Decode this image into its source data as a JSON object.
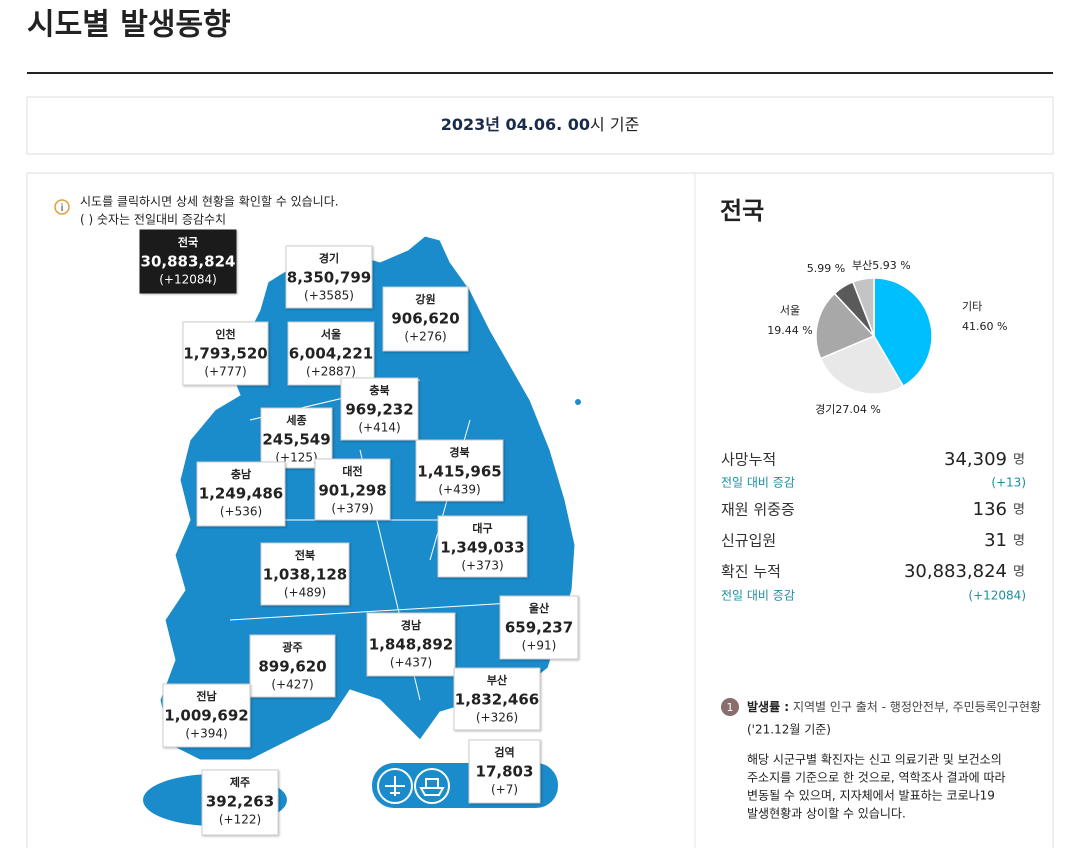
{
  "header": {
    "title": "시도별 발생동향"
  },
  "date": {
    "bold": "2023년 04.06. 00",
    "rest": "시 기준"
  },
  "notice": [
    "시도를 클릭하시면 상세 현황을 확인할 수 있습니다.",
    "( ) 숫자는 전일대비 증감수치"
  ],
  "regions": [
    {
      "name": "전국",
      "total": "30,883,824",
      "change": "(+12084)"
    },
    {
      "name": "경기",
      "total": "8,350,799",
      "change": "(+3585)"
    },
    {
      "name": "강원",
      "total": "906,620",
      "change": "(+276)"
    },
    {
      "name": "인천",
      "total": "1,793,520",
      "change": "(+777)"
    },
    {
      "name": "서울",
      "total": "6,004,221",
      "change": "(+2887)"
    },
    {
      "name": "충북",
      "total": "969,232",
      "change": "(+414)"
    },
    {
      "name": "세종",
      "total": "245,549",
      "change": "(+125)"
    },
    {
      "name": "충남",
      "total": "1,249,486",
      "change": "(+536)"
    },
    {
      "name": "대전",
      "total": "901,298",
      "change": "(+379)"
    },
    {
      "name": "경북",
      "total": "1,415,965",
      "change": "(+439)"
    },
    {
      "name": "대구",
      "total": "1,349,033",
      "change": "(+373)"
    },
    {
      "name": "전북",
      "total": "1,038,128",
      "change": "(+489)"
    },
    {
      "name": "울산",
      "total": "659,237",
      "change": "(+91)"
    },
    {
      "name": "경남",
      "total": "1,848,892",
      "change": "(+437)"
    },
    {
      "name": "광주",
      "total": "899,620",
      "change": "(+427)"
    },
    {
      "name": "부산",
      "total": "1,832,466",
      "change": "(+326)"
    },
    {
      "name": "전남",
      "total": "1,009,692",
      "change": "(+394)"
    },
    {
      "name": "검역",
      "total": "17,803",
      "change": "(+7)"
    },
    {
      "name": "제주",
      "total": "392,263",
      "change": "(+122)"
    }
  ],
  "summary": {
    "title": "전국",
    "rows": [
      {
        "label": "사망누적",
        "value": "34,309",
        "unit": "명"
      },
      {
        "label": "전일 대비 증감",
        "value": "(+13)"
      },
      {
        "label": "재원 위중증",
        "value": "136",
        "unit": "명"
      },
      {
        "label": "신규입원",
        "value": "31",
        "unit": "명"
      },
      {
        "label": "확진 누적",
        "value": "30,883,824",
        "unit": "명"
      },
      {
        "label": "전일 대비 증감",
        "value": "(+12084)"
      }
    ]
  },
  "chart_data": {
    "type": "pie",
    "categories": [
      "기타",
      "경기",
      "서울",
      null,
      "부산"
    ],
    "values": [
      41.6,
      27.04,
      19.44,
      5.99,
      5.93
    ],
    "value_labels": [
      "41.60 %",
      "27.04 %",
      "19.44 %",
      "5.99 %",
      "5.93 %"
    ],
    "colors": [
      "#00bfff",
      "#e8e8e8",
      "#a8a8a8",
      "#5a5a5a",
      "#c4c4c4"
    ]
  },
  "footnote": {
    "number": "1",
    "term": "발생률 :",
    "source": "지역별 인구 출처 - 행정안전부, 주민등록인구현황",
    "basis": "('21.12월 기준)",
    "lines": [
      "해당 시군구별 확진자는 신고 의료기관 및 보건소의",
      "주소지를 기준으로 한 것으로, 역학조사 결과에 따라",
      "변동될 수 있으며, 지자체에서 발표하는 코로나19",
      "발생현황과 상이할 수 있습니다."
    ]
  }
}
